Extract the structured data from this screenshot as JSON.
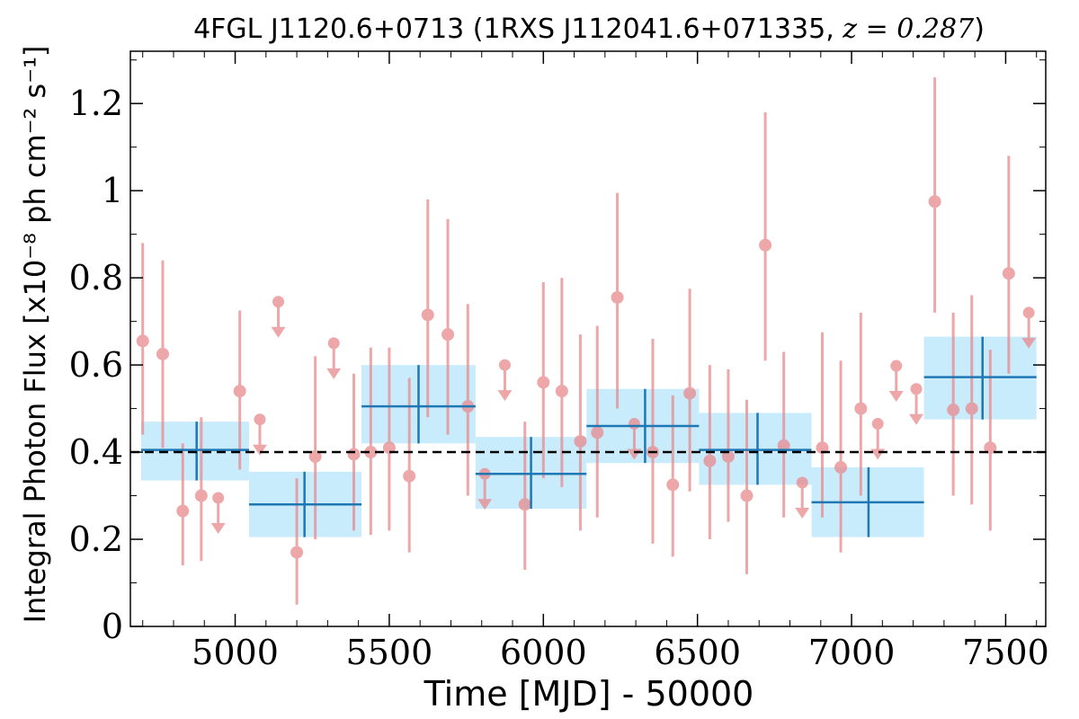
{
  "chart_data": {
    "type": "scatter",
    "title": "4FGL J1120.6+0713 (1RXS J112041.6+071335, z = 0.287)",
    "title_main": "4FGL J1120.6+0713 (1RXS J112041.6+071335,",
    "title_z": "z = 0.287",
    "title_close": ")",
    "xlabel": "Time [MJD] - 50000",
    "ylabel": "Integral Photon Flux [x10⁻⁸ ph cm⁻² s⁻¹]",
    "xlim": [
      4660,
      7630
    ],
    "ylim": [
      0,
      1.32
    ],
    "xticks": [
      5000,
      5500,
      6000,
      6500,
      7000,
      7500
    ],
    "xtick_labels": [
      "5000",
      "5500",
      "6000",
      "6500",
      "7000",
      "7500"
    ],
    "yticks": [
      0,
      0.2,
      0.4,
      0.6,
      0.8,
      1.0,
      1.2
    ],
    "ytick_labels": [
      "0",
      "0.2",
      "0.4",
      "0.6",
      "0.8",
      "1",
      "1.2"
    ],
    "grid": false,
    "reference_line": {
      "y": 0.4,
      "style": "dashed",
      "color": "#000000"
    },
    "colors": {
      "points": "#e88a8c",
      "point_alpha": 0.75,
      "bins": "#1f77b4",
      "bin_fill": "#c9ecfc"
    },
    "detections": [
      {
        "x": 4700,
        "y": 0.655,
        "lo": 0.44,
        "hi": 0.88
      },
      {
        "x": 4765,
        "y": 0.625,
        "lo": 0.41,
        "hi": 0.84
      },
      {
        "x": 4830,
        "y": 0.265,
        "lo": 0.14,
        "hi": 0.42
      },
      {
        "x": 4890,
        "y": 0.3,
        "lo": 0.15,
        "hi": 0.48
      },
      {
        "x": 5015,
        "y": 0.54,
        "lo": 0.36,
        "hi": 0.725
      },
      {
        "x": 5200,
        "y": 0.17,
        "lo": 0.05,
        "hi": 0.34
      },
      {
        "x": 5260,
        "y": 0.39,
        "lo": 0.2,
        "hi": 0.62
      },
      {
        "x": 5385,
        "y": 0.395,
        "lo": 0.22,
        "hi": 0.58
      },
      {
        "x": 5440,
        "y": 0.4,
        "lo": 0.21,
        "hi": 0.64
      },
      {
        "x": 5500,
        "y": 0.41,
        "lo": 0.22,
        "hi": 0.64
      },
      {
        "x": 5565,
        "y": 0.345,
        "lo": 0.17,
        "hi": 0.57
      },
      {
        "x": 5625,
        "y": 0.715,
        "lo": 0.48,
        "hi": 0.98
      },
      {
        "x": 5690,
        "y": 0.67,
        "lo": 0.44,
        "hi": 0.935
      },
      {
        "x": 5755,
        "y": 0.505,
        "lo": 0.3,
        "hi": 0.74
      },
      {
        "x": 5940,
        "y": 0.28,
        "lo": 0.13,
        "hi": 0.47
      },
      {
        "x": 6000,
        "y": 0.56,
        "lo": 0.34,
        "hi": 0.79
      },
      {
        "x": 6060,
        "y": 0.54,
        "lo": 0.32,
        "hi": 0.8
      },
      {
        "x": 6120,
        "y": 0.425,
        "lo": 0.22,
        "hi": 0.67
      },
      {
        "x": 6175,
        "y": 0.445,
        "lo": 0.25,
        "hi": 0.69
      },
      {
        "x": 6240,
        "y": 0.755,
        "lo": 0.5,
        "hi": 0.995
      },
      {
        "x": 6355,
        "y": 0.4,
        "lo": 0.19,
        "hi": 0.66
      },
      {
        "x": 6420,
        "y": 0.325,
        "lo": 0.16,
        "hi": 0.53
      },
      {
        "x": 6475,
        "y": 0.535,
        "lo": 0.31,
        "hi": 0.775
      },
      {
        "x": 6540,
        "y": 0.38,
        "lo": 0.2,
        "hi": 0.6
      },
      {
        "x": 6600,
        "y": 0.39,
        "lo": 0.24,
        "hi": 0.59
      },
      {
        "x": 6660,
        "y": 0.3,
        "lo": 0.12,
        "hi": 0.52
      },
      {
        "x": 6720,
        "y": 0.875,
        "lo": 0.61,
        "hi": 1.18
      },
      {
        "x": 6780,
        "y": 0.415,
        "lo": 0.25,
        "hi": 0.63
      },
      {
        "x": 6905,
        "y": 0.41,
        "lo": 0.25,
        "hi": 0.675
      },
      {
        "x": 6965,
        "y": 0.365,
        "lo": 0.17,
        "hi": 0.61
      },
      {
        "x": 7030,
        "y": 0.5,
        "lo": 0.3,
        "hi": 0.72
      },
      {
        "x": 7270,
        "y": 0.975,
        "lo": 0.72,
        "hi": 1.26
      },
      {
        "x": 7330,
        "y": 0.497,
        "lo": 0.3,
        "hi": 0.72
      },
      {
        "x": 7390,
        "y": 0.5,
        "lo": 0.28,
        "hi": 0.76
      },
      {
        "x": 7450,
        "y": 0.41,
        "lo": 0.22,
        "hi": 0.635
      },
      {
        "x": 7510,
        "y": 0.81,
        "lo": 0.58,
        "hi": 1.08
      }
    ],
    "upper_limits": [
      {
        "x": 4945,
        "y": 0.295
      },
      {
        "x": 5080,
        "y": 0.475
      },
      {
        "x": 5140,
        "y": 0.745
      },
      {
        "x": 5320,
        "y": 0.65
      },
      {
        "x": 5810,
        "y": 0.35
      },
      {
        "x": 5875,
        "y": 0.6
      },
      {
        "x": 6295,
        "y": 0.465
      },
      {
        "x": 6840,
        "y": 0.33
      },
      {
        "x": 7085,
        "y": 0.465
      },
      {
        "x": 7145,
        "y": 0.598
      },
      {
        "x": 7210,
        "y": 0.545
      },
      {
        "x": 7575,
        "y": 0.72
      }
    ],
    "binned": [
      {
        "x": 4875,
        "y": 0.405,
        "x0": 4695,
        "x1": 5045,
        "lo": 0.335,
        "hi": 0.47
      },
      {
        "x": 5225,
        "y": 0.28,
        "x0": 5045,
        "x1": 5410,
        "lo": 0.205,
        "hi": 0.355
      },
      {
        "x": 5595,
        "y": 0.505,
        "x0": 5410,
        "x1": 5780,
        "lo": 0.42,
        "hi": 0.6
      },
      {
        "x": 5960,
        "y": 0.35,
        "x0": 5780,
        "x1": 6140,
        "lo": 0.27,
        "hi": 0.435
      },
      {
        "x": 6330,
        "y": 0.46,
        "x0": 6140,
        "x1": 6505,
        "lo": 0.375,
        "hi": 0.545
      },
      {
        "x": 6695,
        "y": 0.405,
        "x0": 6505,
        "x1": 6870,
        "lo": 0.325,
        "hi": 0.49
      },
      {
        "x": 7055,
        "y": 0.285,
        "x0": 6870,
        "x1": 7235,
        "lo": 0.205,
        "hi": 0.365
      },
      {
        "x": 7425,
        "y": 0.572,
        "x0": 7235,
        "x1": 7600,
        "lo": 0.475,
        "hi": 0.665
      }
    ]
  }
}
